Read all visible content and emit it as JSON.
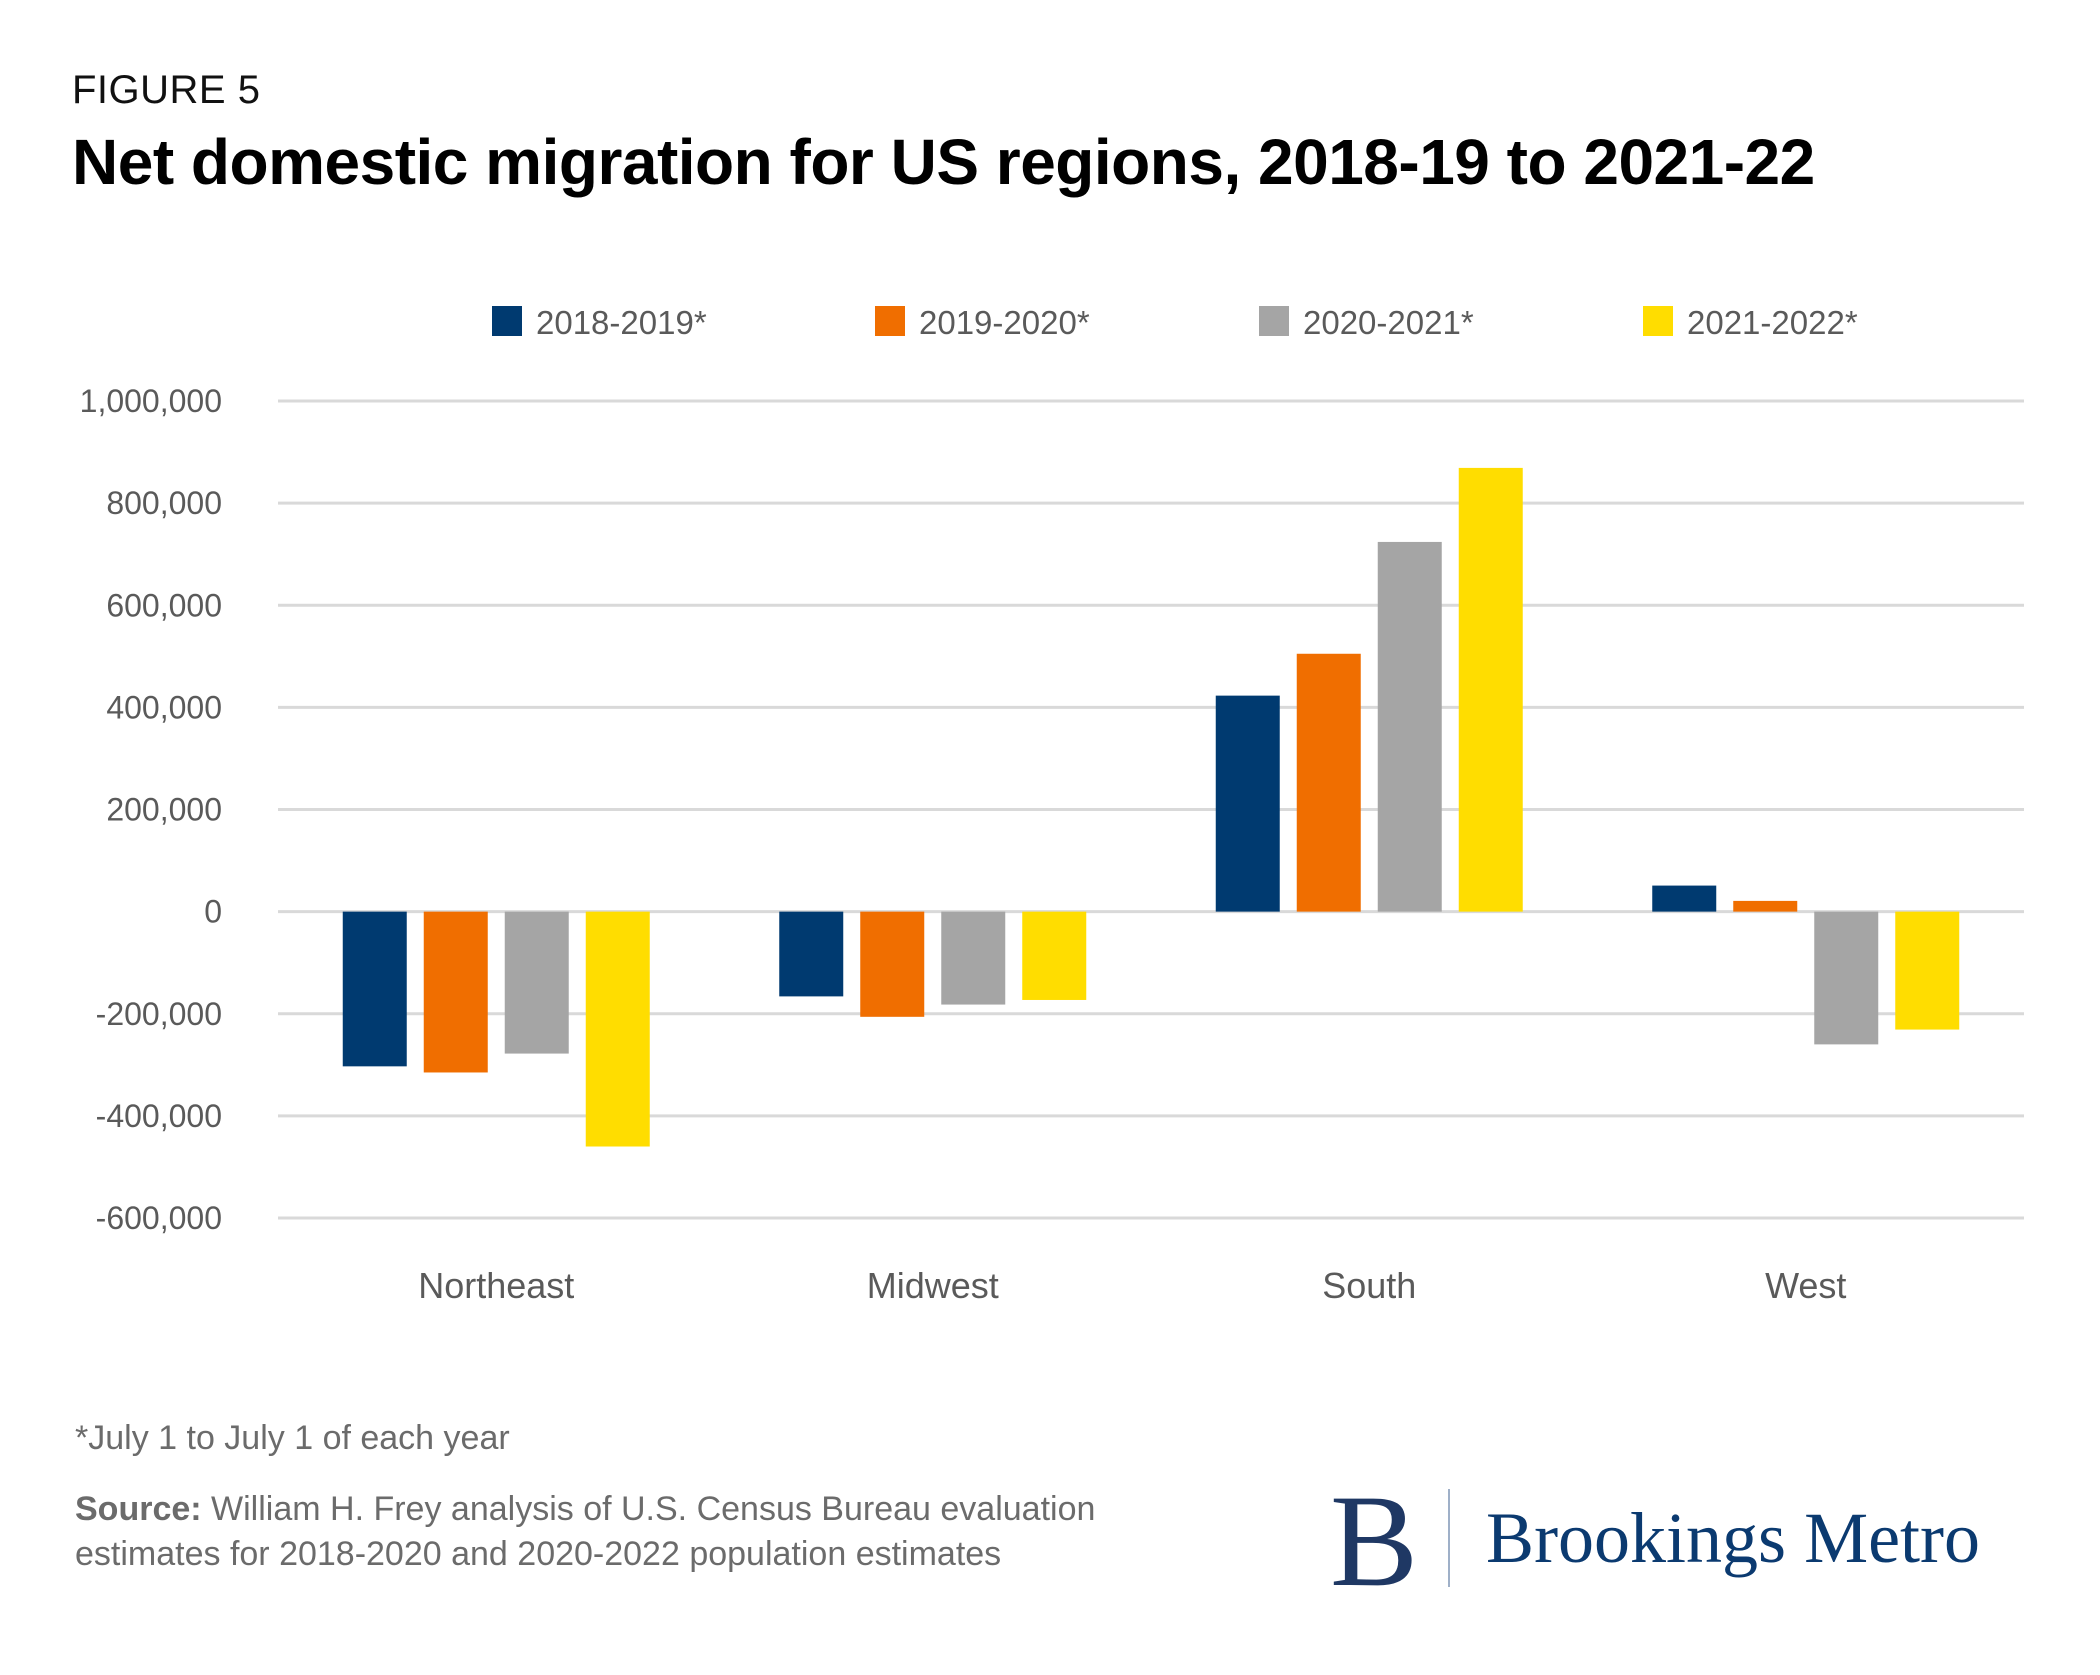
{
  "header": {
    "figure_label": "FIGURE 5",
    "title": "Net domestic migration for US regions, 2018-19 to 2021-22"
  },
  "chart_data": {
    "type": "bar",
    "title": "Net domestic migration for US regions, 2018-19 to 2021-22",
    "xlabel": "",
    "ylabel": "",
    "categories": [
      "Northeast",
      "Midwest",
      "South",
      "West"
    ],
    "series": [
      {
        "name": "2018-2019*",
        "color": "#003a70",
        "values": [
          -303000,
          -166000,
          423000,
          51000
        ]
      },
      {
        "name": "2019-2020*",
        "color": "#f06e00",
        "values": [
          -315000,
          -206000,
          505000,
          21000
        ]
      },
      {
        "name": "2020-2021*",
        "color": "#a5a5a5",
        "values": [
          -278000,
          -182000,
          724000,
          -260000
        ]
      },
      {
        "name": "2021-2022*",
        "color": "#ffdd00",
        "values": [
          -460000,
          -173000,
          869000,
          -231000
        ]
      }
    ],
    "ylim": [
      -600000,
      1000000
    ],
    "yticks": [
      1000000,
      800000,
      600000,
      400000,
      200000,
      0,
      -200000,
      -400000,
      -600000
    ],
    "ytick_labels": [
      "1,000,000",
      "800,000",
      "600,000",
      "400,000",
      "200,000",
      "0",
      "-200,000",
      "-400,000",
      "-600,000"
    ],
    "grid": true,
    "legend_position": "top"
  },
  "footer": {
    "footnote": "*July 1 to July 1 of each year",
    "source_label": "Source:",
    "source_text": " William H. Frey analysis of U.S. Census Bureau evaluation estimates for 2018-2020 and 2020-2022 population estimates"
  },
  "logo": {
    "mark": "B",
    "text": "Brookings Metro",
    "color": "#0b3a70"
  }
}
